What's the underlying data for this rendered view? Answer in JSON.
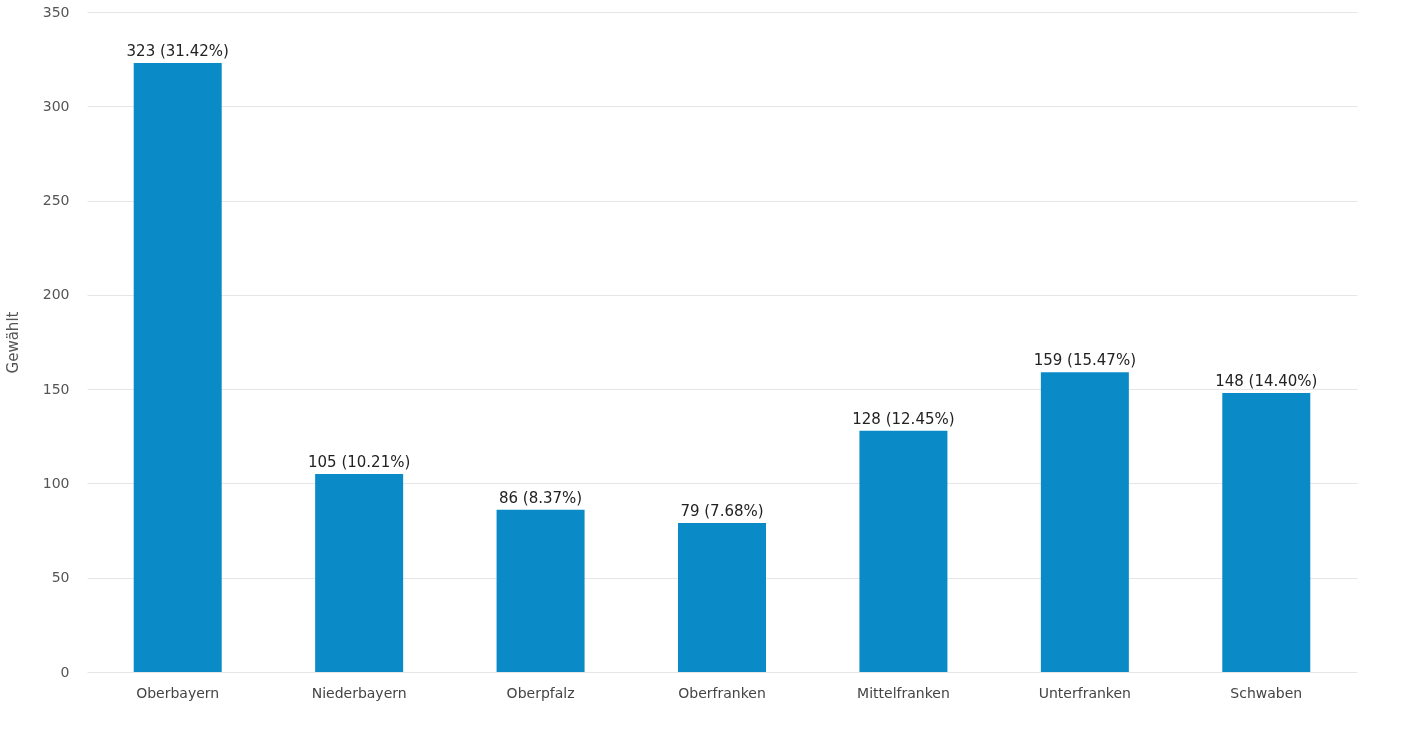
{
  "chart_data": {
    "type": "bar",
    "ylabel": "Gewählt",
    "categories": [
      "Oberbayern",
      "Niederbayern",
      "Oberpfalz",
      "Oberfranken",
      "Mittelfranken",
      "Unterfranken",
      "Schwaben"
    ],
    "values": [
      323,
      105,
      86,
      79,
      128,
      159,
      148
    ],
    "value_labels": [
      "323 (31.42%)",
      "105 (10.21%)",
      "86 (8.37%)",
      "79 (7.68%)",
      "128 (12.45%)",
      "159 (15.47%)",
      "148 (14.40%)"
    ],
    "color": "#0a8bc8",
    "ylim": [
      0,
      350
    ],
    "yticks": [
      0,
      50,
      100,
      150,
      200,
      250,
      300,
      350
    ],
    "grid": "y"
  }
}
